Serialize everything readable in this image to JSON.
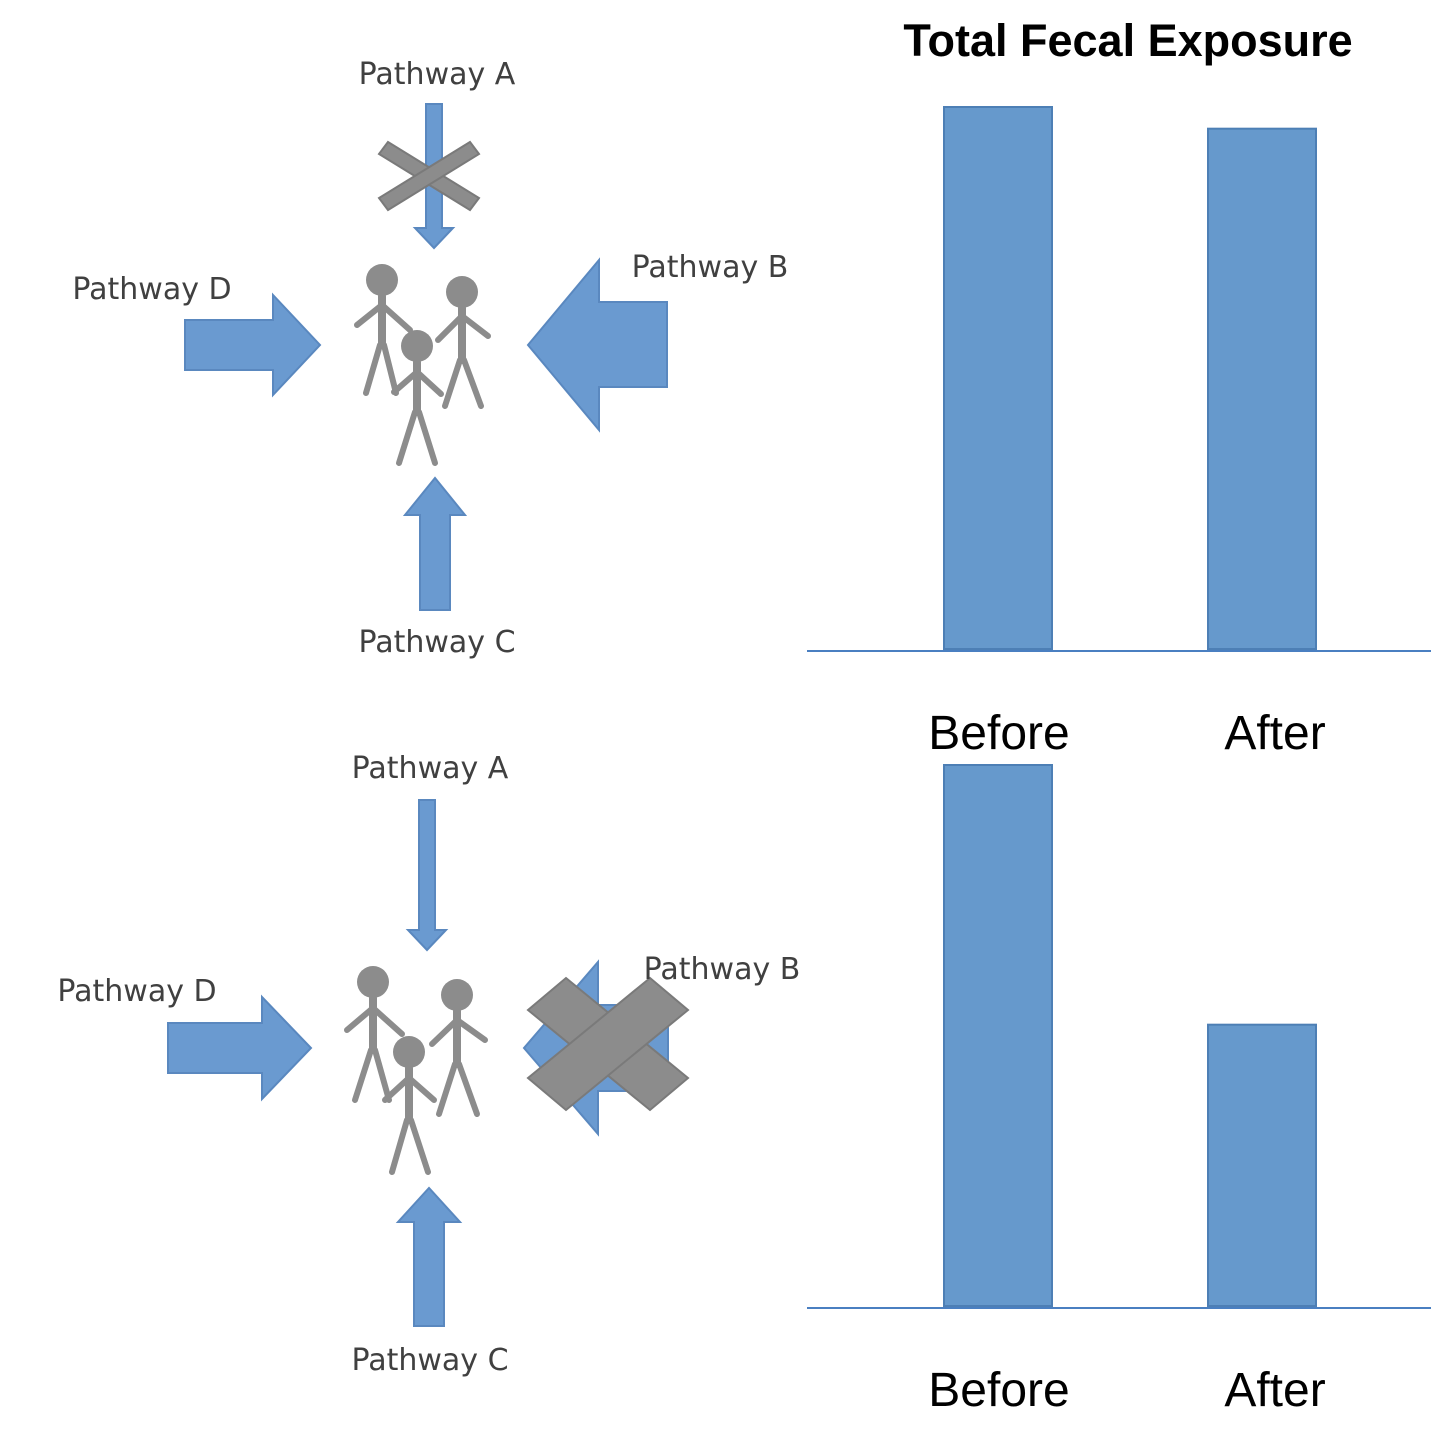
{
  "colors": {
    "arrow": "#6a9ad0",
    "arrow_stroke": "#5a88bf",
    "bar": "#6699cc",
    "bar_stroke": "#4d7fb5",
    "blocked_x": "#8c8c8c",
    "person": "#8c8c8c",
    "axis": "#4a7fc1"
  },
  "icons": {
    "people": "family-people-icon",
    "block": "blocked-x-icon"
  },
  "scenarios": [
    {
      "pathways": {
        "a": "Pathway A",
        "b": "Pathway B",
        "c": "Pathway C",
        "d": "Pathway D"
      },
      "blocked_pathway": "Pathway A"
    },
    {
      "pathways": {
        "a": "Pathway A",
        "b": "Pathway B",
        "c": "Pathway C",
        "d": "Pathway D"
      },
      "blocked_pathway": "Pathway B"
    }
  ],
  "chart_data": [
    {
      "type": "bar",
      "title": "Total Fecal Exposure",
      "categories": [
        "Before",
        "After"
      ],
      "values": [
        100,
        96
      ],
      "ylim": [
        0,
        100
      ],
      "grid": false
    },
    {
      "type": "bar",
      "title": "",
      "categories": [
        "Before",
        "After"
      ],
      "values": [
        100,
        52
      ],
      "ylim": [
        0,
        100
      ],
      "grid": false
    }
  ]
}
